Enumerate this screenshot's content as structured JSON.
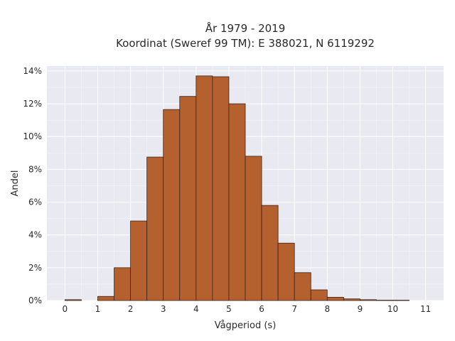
{
  "chart_data": {
    "type": "bar",
    "title_line1": "År 1979 - 2019",
    "title_line2": "Koordinat (Sweref 99 TM): E 388021, N 6119292",
    "xlabel": "Vågperiod (s)",
    "ylabel": "Andel",
    "x_ticks": [
      "0",
      "1",
      "2",
      "3",
      "4",
      "5",
      "6",
      "7",
      "8",
      "9",
      "10",
      "11"
    ],
    "y_ticks": [
      "0%",
      "2%",
      "4%",
      "6%",
      "8%",
      "10%",
      "12%",
      "14%"
    ],
    "xlim": [
      -0.55,
      11.55
    ],
    "ylim": [
      0,
      14.3
    ],
    "bin_width": 0.5,
    "bins": [
      {
        "start": 0.0,
        "value": 0.05
      },
      {
        "start": 0.5,
        "value": 0.0
      },
      {
        "start": 1.0,
        "value": 0.25
      },
      {
        "start": 1.5,
        "value": 2.0
      },
      {
        "start": 2.0,
        "value": 4.85
      },
      {
        "start": 2.5,
        "value": 8.75
      },
      {
        "start": 3.0,
        "value": 11.65
      },
      {
        "start": 3.5,
        "value": 12.45
      },
      {
        "start": 4.0,
        "value": 13.7
      },
      {
        "start": 4.5,
        "value": 13.65
      },
      {
        "start": 5.0,
        "value": 12.0
      },
      {
        "start": 5.5,
        "value": 8.8
      },
      {
        "start": 6.0,
        "value": 5.8
      },
      {
        "start": 6.5,
        "value": 3.5
      },
      {
        "start": 7.0,
        "value": 1.7
      },
      {
        "start": 7.5,
        "value": 0.65
      },
      {
        "start": 8.0,
        "value": 0.2
      },
      {
        "start": 8.5,
        "value": 0.1
      },
      {
        "start": 9.0,
        "value": 0.05
      },
      {
        "start": 9.5,
        "value": 0.02
      },
      {
        "start": 10.0,
        "value": 0.02
      }
    ],
    "bar_color": "#b5612f",
    "bar_edge_color": "#3a2418",
    "plot_background": "#e9e9f1",
    "grid": true,
    "legend": false
  }
}
